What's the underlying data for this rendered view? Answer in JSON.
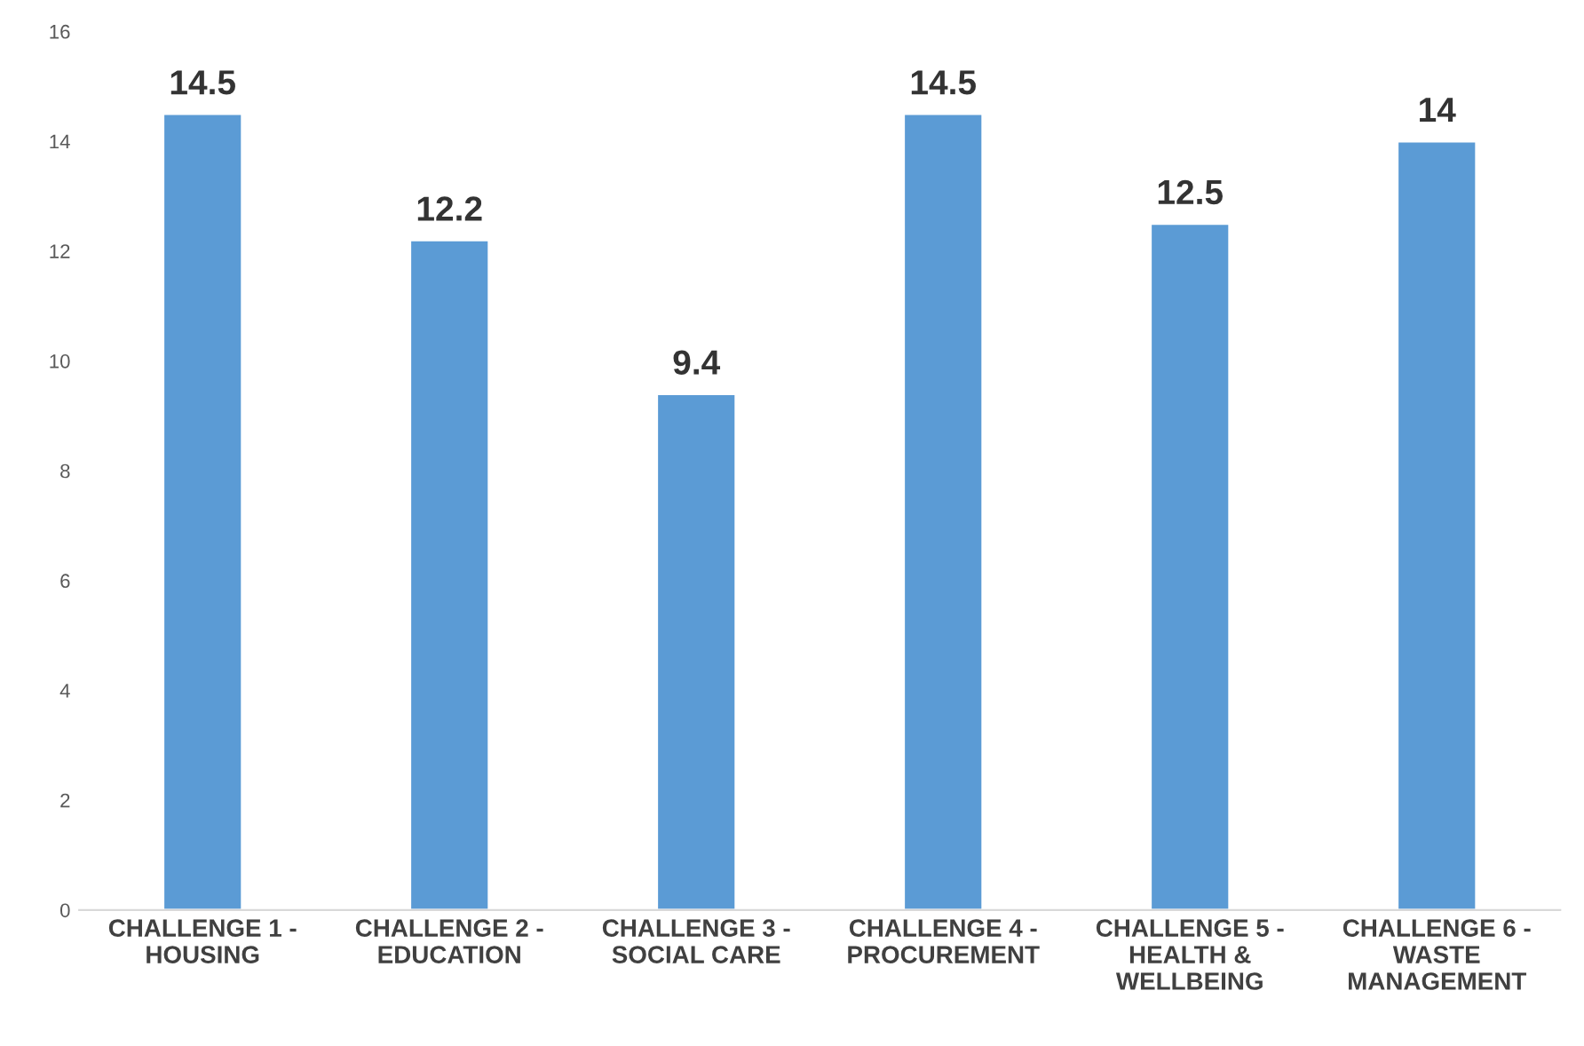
{
  "chart_data": {
    "type": "bar",
    "categories": [
      "CHALLENGE 1 -\nHOUSING",
      "CHALLENGE 2 -\nEDUCATION",
      "CHALLENGE 3 -\nSOCIAL CARE",
      "CHALLENGE 4 -\nPROCUREMENT",
      "CHALLENGE 5 -\nHEALTH &\nWELLBEING",
      "CHALLENGE 6 -\nWASTE\nMANAGEMENT"
    ],
    "values": [
      14.5,
      12.2,
      9.4,
      14.5,
      12.5,
      14
    ],
    "color": "#5b9bd5",
    "ylim": [
      0,
      16
    ],
    "yticks": [
      0,
      2,
      4,
      6,
      8,
      10,
      12,
      14,
      16
    ],
    "data_labels": true,
    "grid": false,
    "legend": false
  }
}
